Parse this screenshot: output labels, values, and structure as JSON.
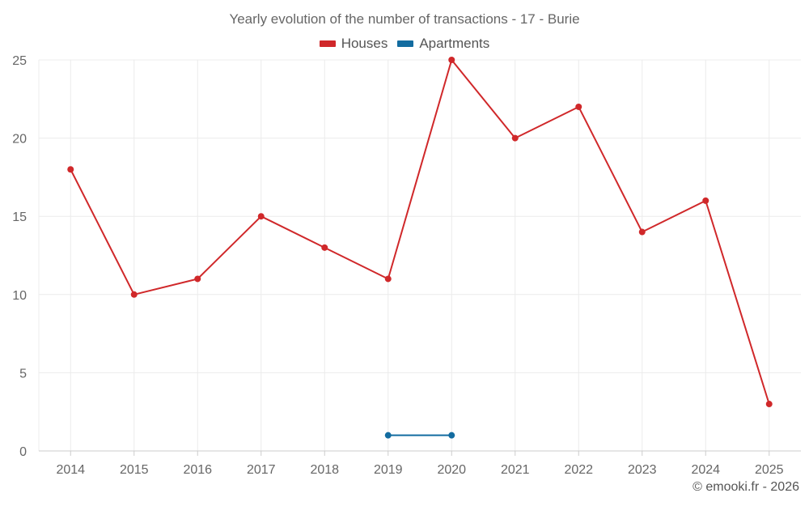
{
  "chart_data": {
    "type": "line",
    "title": "Yearly evolution of the number of transactions - 17 - Burie",
    "categories": [
      "2014",
      "2015",
      "2016",
      "2017",
      "2018",
      "2019",
      "2020",
      "2021",
      "2022",
      "2023",
      "2024",
      "2025"
    ],
    "series": [
      {
        "name": "Houses",
        "color": "#d0282a",
        "values": [
          18,
          10,
          11,
          15,
          13,
          11,
          25,
          20,
          22,
          14,
          16,
          3
        ]
      },
      {
        "name": "Apartments",
        "color": "#136ca0",
        "values": [
          null,
          null,
          null,
          null,
          null,
          1,
          1,
          null,
          null,
          null,
          null,
          null
        ]
      }
    ],
    "ylim": [
      0,
      25
    ],
    "yticks": [
      0,
      5,
      10,
      15,
      20,
      25
    ],
    "grid": true,
    "legend_position": "top-center"
  },
  "footer": "© emooki.fr - 2026"
}
